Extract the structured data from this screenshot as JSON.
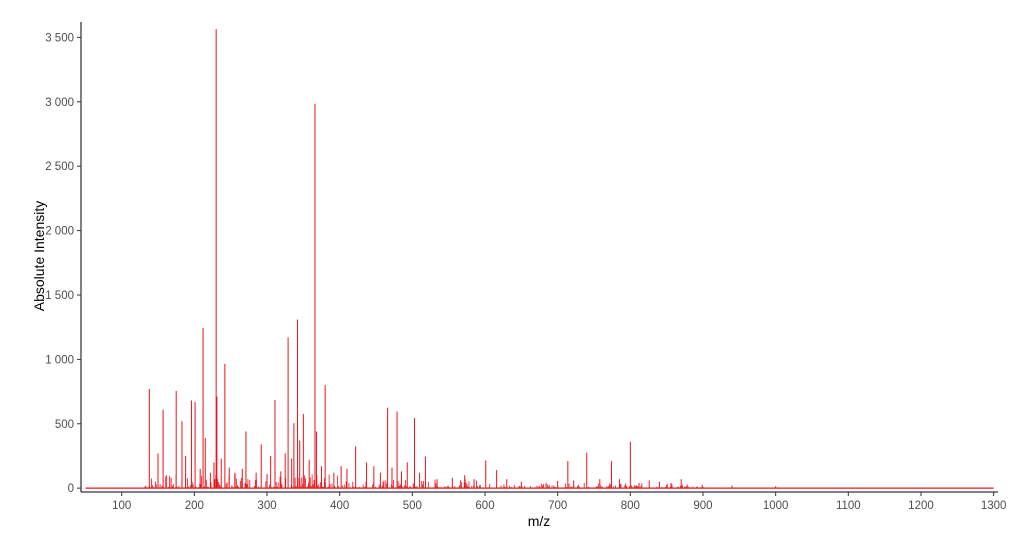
{
  "chart_data": {
    "type": "line",
    "title": "",
    "xlabel": "m/z",
    "ylabel": "Absolute Intensity",
    "xlim": [
      44,
      1306
    ],
    "ylim": [
      -30,
      3620
    ],
    "xticks": [
      100,
      200,
      300,
      400,
      500,
      600,
      700,
      800,
      900,
      1000,
      1100,
      1200,
      1300
    ],
    "xtick_labels": [
      "100",
      "200",
      "300",
      "400",
      "500",
      "600",
      "700",
      "800",
      "900",
      "1000",
      "1100",
      "1200",
      "1300"
    ],
    "yticks": [
      0,
      500,
      1000,
      1500,
      2000,
      2500,
      3000,
      3500
    ],
    "ytick_labels": [
      "0",
      "500",
      "1 000",
      "1 500",
      "2 000",
      "2 500",
      "3 000",
      "3 500"
    ],
    "grid": false,
    "legend": "none",
    "line_color": "#e8141b",
    "x_start": 50,
    "x_end": 1300,
    "series": [
      {
        "peaks": [
          {
            "x": 138,
            "y": 770
          },
          {
            "x": 150,
            "y": 270
          },
          {
            "x": 157,
            "y": 610
          },
          {
            "x": 168,
            "y": 80
          },
          {
            "x": 175,
            "y": 755
          },
          {
            "x": 183,
            "y": 520
          },
          {
            "x": 188,
            "y": 250
          },
          {
            "x": 196,
            "y": 680
          },
          {
            "x": 201,
            "y": 670
          },
          {
            "x": 208,
            "y": 150
          },
          {
            "x": 212,
            "y": 1245
          },
          {
            "x": 215,
            "y": 390
          },
          {
            "x": 222,
            "y": 120
          },
          {
            "x": 227,
            "y": 200
          },
          {
            "x": 230,
            "y": 3565
          },
          {
            "x": 231,
            "y": 710
          },
          {
            "x": 237,
            "y": 230
          },
          {
            "x": 242,
            "y": 965
          },
          {
            "x": 248,
            "y": 160
          },
          {
            "x": 256,
            "y": 120
          },
          {
            "x": 266,
            "y": 150
          },
          {
            "x": 271,
            "y": 440
          },
          {
            "x": 285,
            "y": 120
          },
          {
            "x": 292,
            "y": 340
          },
          {
            "x": 300,
            "y": 110
          },
          {
            "x": 305,
            "y": 250
          },
          {
            "x": 311,
            "y": 685
          },
          {
            "x": 319,
            "y": 130
          },
          {
            "x": 325,
            "y": 270
          },
          {
            "x": 329,
            "y": 1170
          },
          {
            "x": 334,
            "y": 230
          },
          {
            "x": 337,
            "y": 505
          },
          {
            "x": 342,
            "y": 1310
          },
          {
            "x": 345,
            "y": 370
          },
          {
            "x": 350,
            "y": 575
          },
          {
            "x": 358,
            "y": 220
          },
          {
            "x": 366,
            "y": 2985
          },
          {
            "x": 368,
            "y": 440
          },
          {
            "x": 375,
            "y": 170
          },
          {
            "x": 380,
            "y": 800
          },
          {
            "x": 392,
            "y": 120
          },
          {
            "x": 402,
            "y": 170
          },
          {
            "x": 410,
            "y": 150
          },
          {
            "x": 422,
            "y": 325
          },
          {
            "x": 437,
            "y": 200
          },
          {
            "x": 447,
            "y": 170
          },
          {
            "x": 456,
            "y": 120
          },
          {
            "x": 466,
            "y": 625
          },
          {
            "x": 472,
            "y": 160
          },
          {
            "x": 479,
            "y": 595
          },
          {
            "x": 485,
            "y": 130
          },
          {
            "x": 493,
            "y": 200
          },
          {
            "x": 503,
            "y": 545
          },
          {
            "x": 510,
            "y": 120
          },
          {
            "x": 518,
            "y": 245
          },
          {
            "x": 534,
            "y": 70
          },
          {
            "x": 555,
            "y": 80
          },
          {
            "x": 572,
            "y": 100
          },
          {
            "x": 585,
            "y": 70
          },
          {
            "x": 601,
            "y": 215
          },
          {
            "x": 616,
            "y": 140
          },
          {
            "x": 630,
            "y": 70
          },
          {
            "x": 650,
            "y": 50
          },
          {
            "x": 684,
            "y": 40
          },
          {
            "x": 700,
            "y": 55
          },
          {
            "x": 714,
            "y": 210
          },
          {
            "x": 722,
            "y": 60
          },
          {
            "x": 740,
            "y": 275
          },
          {
            "x": 758,
            "y": 70
          },
          {
            "x": 774,
            "y": 210
          },
          {
            "x": 785,
            "y": 70
          },
          {
            "x": 800,
            "y": 360
          },
          {
            "x": 812,
            "y": 40
          },
          {
            "x": 826,
            "y": 60
          },
          {
            "x": 840,
            "y": 50
          },
          {
            "x": 856,
            "y": 40
          },
          {
            "x": 870,
            "y": 70
          },
          {
            "x": 899,
            "y": 25
          },
          {
            "x": 940,
            "y": 20
          },
          {
            "x": 1000,
            "y": 15
          }
        ]
      }
    ]
  }
}
